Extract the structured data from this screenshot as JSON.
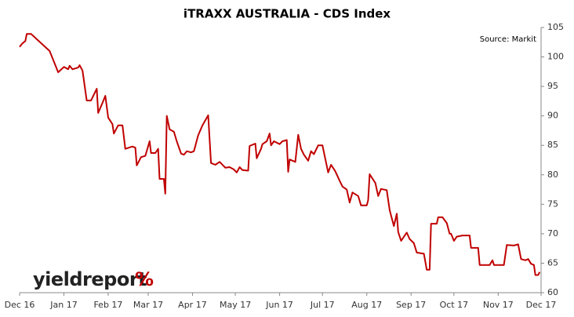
{
  "chart_data": {
    "type": "line",
    "title": "iTRAXX AUSTRALIA - CDS Index",
    "source": "Source: Markit",
    "x": [
      0,
      2,
      4,
      5,
      8,
      21,
      27,
      31,
      34,
      35,
      37,
      41,
      42,
      44,
      47,
      50,
      54,
      55,
      58,
      60,
      62,
      65,
      66,
      69,
      72,
      74,
      79,
      81,
      82,
      85,
      88,
      91,
      92,
      95,
      97,
      98,
      101,
      102,
      103,
      105,
      108,
      110,
      113,
      115,
      117,
      120,
      122,
      125,
      128,
      132,
      134,
      137,
      140,
      144,
      147,
      150,
      152,
      154,
      156,
      160,
      161,
      165,
      166,
      169,
      170,
      173,
      175,
      176,
      178,
      182,
      184,
      187,
      188,
      189,
      193,
      195,
      197,
      199,
      202,
      204,
      206,
      209,
      212,
      216,
      218,
      221,
      224,
      226,
      229,
      231,
      233,
      237,
      239,
      243,
      244,
      245,
      249,
      251,
      253,
      257,
      259,
      262,
      264,
      265,
      267,
      271,
      273,
      276,
      278,
      283,
      285,
      287,
      288,
      292,
      293,
      296,
      299,
      301,
      302,
      304,
      306,
      310,
      315,
      316,
      321,
      322,
      329,
      331,
      332,
      339,
      341,
      346,
      349,
      351,
      354,
      356,
      358,
      360,
      361,
      363,
      364
    ],
    "series": [
      {
        "name": "iTRAXX Australia",
        "color": "#c00000",
        "values": [
          101.7,
          102.3,
          102.7,
          103.9,
          103.9,
          101,
          97.4,
          98.3,
          97.9,
          98.5,
          97.9,
          98.2,
          98.6,
          97.7,
          92.6,
          92.6,
          94.6,
          90.5,
          92.2,
          93.4,
          89.7,
          88.6,
          87,
          88.4,
          88.4,
          84.4,
          84.8,
          84.6,
          81.6,
          83,
          83.2,
          85.7,
          83.7,
          83.7,
          84.4,
          79.3,
          79.3,
          76.8,
          90,
          87.7,
          87.3,
          85.7,
          83.6,
          83.4,
          84,
          83.8,
          84,
          86.7,
          88.4,
          90.1,
          82,
          81.7,
          82.2,
          81.2,
          81.3,
          80.9,
          80.4,
          81.3,
          80.8,
          80.7,
          84.9,
          85.3,
          82.8,
          84.4,
          85.2,
          85.7,
          87,
          85,
          85.7,
          85.2,
          85.7,
          85.9,
          80.5,
          82.6,
          82.2,
          86.8,
          84.4,
          83.4,
          82.4,
          84,
          83.5,
          85,
          85,
          80.4,
          81.7,
          80.6,
          79,
          78,
          77.5,
          75.3,
          77,
          76.4,
          74.8,
          74.8,
          75.7,
          80.1,
          78.6,
          76.4,
          77.6,
          77.4,
          74,
          71.3,
          73.4,
          70.3,
          68.8,
          70.2,
          69.1,
          68.4,
          66.8,
          66.6,
          63.9,
          63.9,
          71.7,
          71.7,
          72.8,
          72.8,
          71.8,
          70,
          70,
          68.8,
          69.5,
          69.7,
          69.7,
          67.6,
          67.6,
          64.7,
          64.7,
          65.5,
          64.7,
          64.7,
          68.1,
          68,
          68.2,
          65.7,
          65.5,
          65.7,
          64.9,
          64.7,
          63,
          63,
          63.5
        ]
      }
    ],
    "xlim": [
      0,
      365
    ],
    "xticks": [
      {
        "value": 0,
        "label": "Dec 16"
      },
      {
        "value": 31,
        "label": "Jan 17"
      },
      {
        "value": 62,
        "label": "Feb 17"
      },
      {
        "value": 90,
        "label": "Mar 17"
      },
      {
        "value": 121,
        "label": "Apr 17"
      },
      {
        "value": 151,
        "label": "May 17"
      },
      {
        "value": 182,
        "label": "Jun 17"
      },
      {
        "value": 212,
        "label": "Jul 17"
      },
      {
        "value": 243,
        "label": "Aug 17"
      },
      {
        "value": 274,
        "label": "Sep 17"
      },
      {
        "value": 304,
        "label": "Oct 17"
      },
      {
        "value": 335,
        "label": "Nov 17"
      },
      {
        "value": 365,
        "label": "Dec 17"
      }
    ],
    "ylim": [
      60,
      105
    ],
    "yticks": [
      60,
      65,
      70,
      75,
      80,
      85,
      90,
      95,
      100,
      105
    ],
    "grid": false
  },
  "logo": {
    "text": "yieldreport",
    "symbol": "%"
  }
}
